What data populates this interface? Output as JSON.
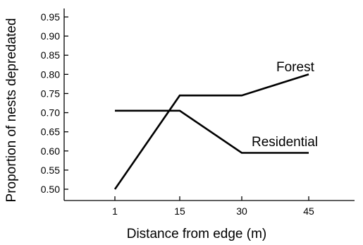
{
  "chart_data": {
    "type": "line",
    "title": "",
    "xlabel": "Distance from edge (m)",
    "ylabel": "Proportion of nests depredated",
    "categories": [
      "1",
      "15",
      "30",
      "45"
    ],
    "ylim": [
      0.5,
      0.95
    ],
    "yticks": [
      0.5,
      0.55,
      0.6,
      0.65,
      0.7,
      0.75,
      0.8,
      0.85,
      0.9,
      0.95
    ],
    "grid": false,
    "legend": "inline labels",
    "series": [
      {
        "name": "Forest",
        "values": [
          0.5,
          0.745,
          0.745,
          0.8
        ]
      },
      {
        "name": "Residential",
        "values": [
          0.705,
          0.705,
          0.595,
          0.595
        ]
      }
    ]
  }
}
